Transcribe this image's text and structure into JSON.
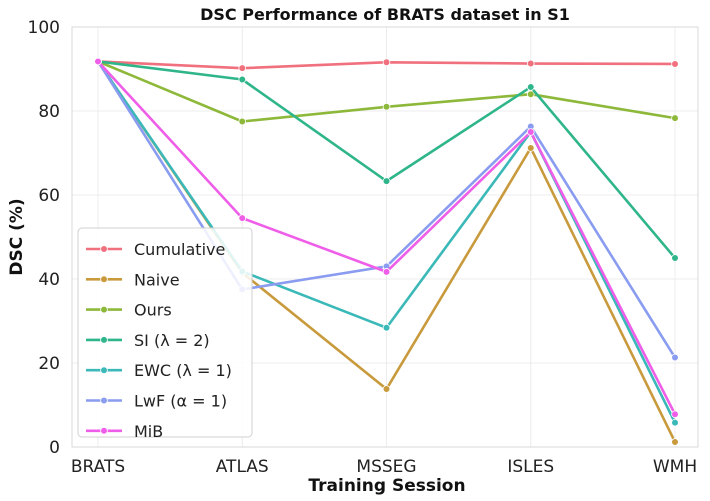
{
  "chart_data": {
    "type": "line",
    "title": "DSC Performance of BRATS dataset in S1",
    "xlabel": "Training Session",
    "ylabel": "DSC (%)",
    "categories": [
      "BRATS",
      "ATLAS",
      "MSSEG",
      "ISLES",
      "WMH"
    ],
    "ylim": [
      0,
      100
    ],
    "yticks": [
      "0",
      "20",
      "40",
      "60",
      "80",
      "100"
    ],
    "grid": true,
    "legend_position": "lower-left",
    "series": [
      {
        "name": "Cumulative",
        "color": "#f0707e",
        "values": [
          91.8,
          90.2,
          91.6,
          91.3,
          91.2
        ]
      },
      {
        "name": "Naive",
        "color": "#c89a3c",
        "values": [
          91.8,
          41.5,
          13.8,
          71.2,
          1.2
        ]
      },
      {
        "name": "Ours",
        "color": "#8db83a",
        "values": [
          91.8,
          77.5,
          81.0,
          84.0,
          78.3
        ]
      },
      {
        "name": "SI (λ = 2)",
        "color": "#2fb58a",
        "values": [
          91.8,
          87.5,
          63.3,
          85.7,
          45.0
        ]
      },
      {
        "name": "EWC (λ = 1)",
        "color": "#3bb8b8",
        "values": [
          91.8,
          41.8,
          28.4,
          75.0,
          5.8
        ]
      },
      {
        "name": "LwF (α = 1)",
        "color": "#8a9cf0",
        "values": [
          91.8,
          37.5,
          43.0,
          76.3,
          21.3
        ]
      },
      {
        "name": "MiB",
        "color": "#ef5ee8",
        "values": [
          91.8,
          54.5,
          41.7,
          75.0,
          7.8
        ]
      }
    ]
  }
}
